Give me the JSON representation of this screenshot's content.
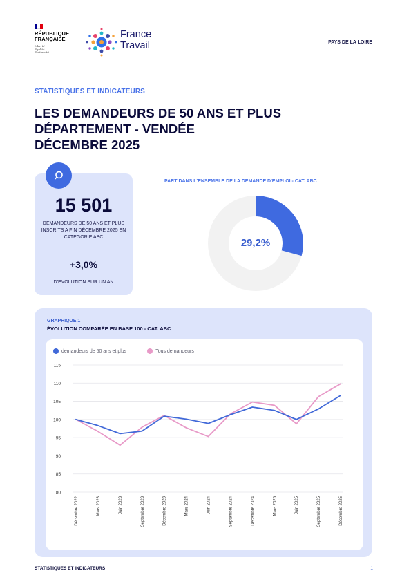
{
  "header": {
    "republique": [
      "RÉPUBLIQUE",
      "FRANÇAISE"
    ],
    "motto": [
      "Liberté",
      "Égalité",
      "Fraternité"
    ],
    "logo_text": [
      "France",
      "Travail"
    ],
    "region": "PAYS DE LA LOIRE"
  },
  "kicker": "STATISTIQUES ET INDICATEURS",
  "title_lines": [
    "LES DEMANDEURS DE 50 ANS ET PLUS",
    "DÉPARTEMENT - VENDÉE",
    "DÉCEMBRE 2025"
  ],
  "kpi": {
    "value": "15 501",
    "description": "DEMANDEURS DE 50 ANS ET PLUS INSCRITS A FIN DÉCEMBRE 2025 EN CATEGORIE ABC",
    "evolution": "+3,0%",
    "evolution_label": "D'EVOLUTION SUR UN AN"
  },
  "donut": {
    "title": "PART DANS L'ENSEMBLE DE LA DEMANDE D'EMPLOI - CAT. ABC",
    "value": 29.2,
    "label": "29,2%",
    "color": "#3f6ae0",
    "track_color": "#f2f2f2"
  },
  "chart_panel": {
    "kicker": "GRAPHIQUE 1",
    "title": "ÉVOLUTION COMPARÉE EN BASE 100 - CAT. ABC"
  },
  "chart_data": {
    "type": "line",
    "title": "ÉVOLUTION COMPARÉE EN BASE 100 - CAT. ABC",
    "categories": [
      "Décembre 2022",
      "Mars 2023",
      "Juin 2023",
      "Septembre 2023",
      "Décembre 2023",
      "Mars 2024",
      "Juin 2024",
      "Septembre 2024",
      "Décembre 2024",
      "Mars 2025",
      "Juin 2025",
      "Septembre 2025",
      "Décembre 2025"
    ],
    "series": [
      {
        "name": "demandeurs de 50 ans et plus",
        "color": "#4169d8",
        "values": [
          100,
          98.3,
          96.1,
          96.8,
          100.9,
          100.1,
          98.9,
          101.3,
          103.4,
          102.5,
          100,
          102.9,
          106.6
        ]
      },
      {
        "name": "Tous demandeurs",
        "color": "#e89ac8",
        "values": [
          100,
          96.7,
          92.9,
          97.9,
          101.1,
          97.7,
          95.3,
          101.5,
          104.8,
          103.9,
          98.8,
          106.3,
          109.8
        ]
      }
    ],
    "y_ticks": [
      80,
      85,
      90,
      95,
      100,
      105,
      110,
      115
    ],
    "ylim": [
      80,
      115
    ],
    "grid": true,
    "legend": "top-left"
  },
  "footer": {
    "left": "STATISTIQUES ET INDICATEURS",
    "page": "1"
  }
}
